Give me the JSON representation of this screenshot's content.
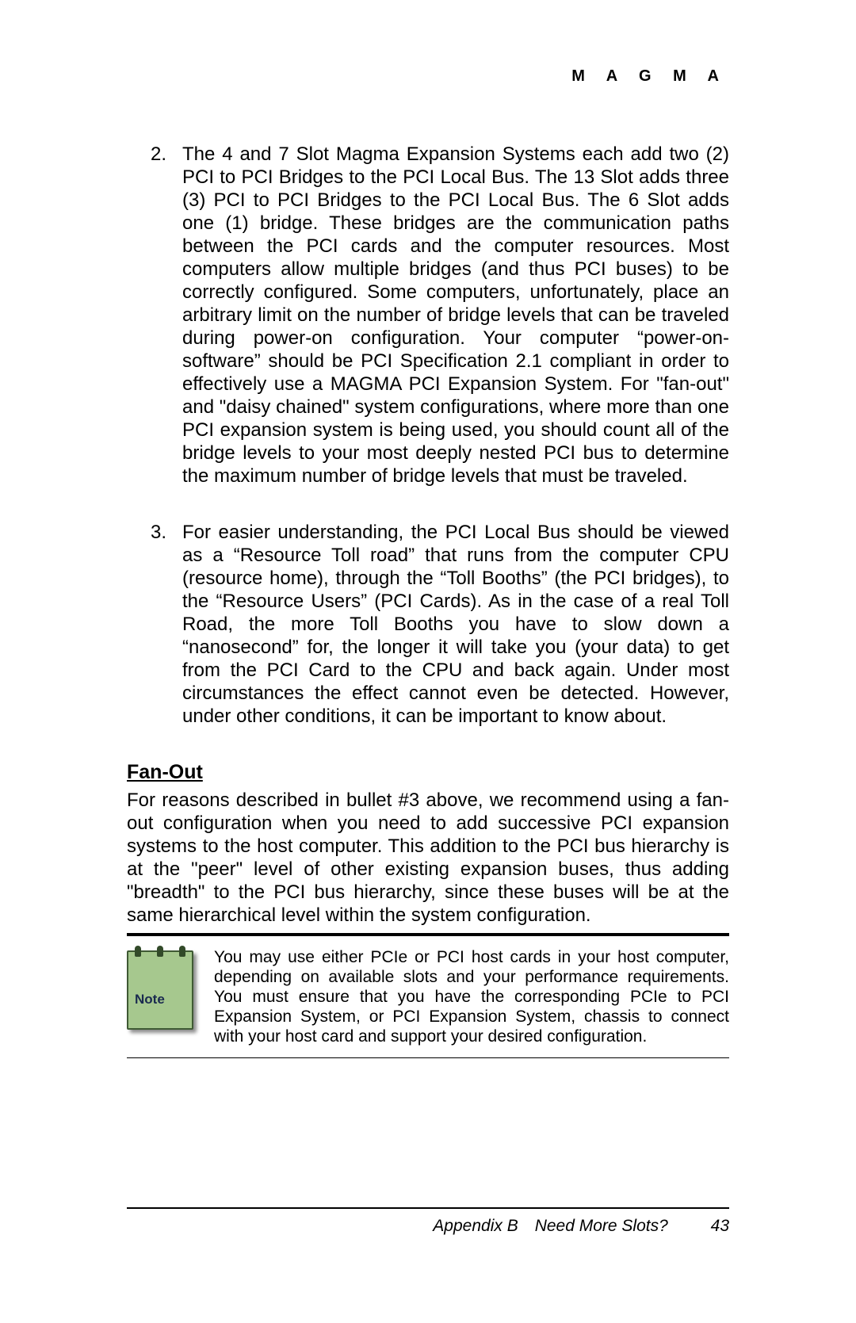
{
  "header": {
    "brand": "M A G M A"
  },
  "list": {
    "item2": {
      "num": "2.",
      "text": "The 4 and 7 Slot Magma Expansion Systems each add two (2) PCI to PCI Bridges to the PCI Local Bus. The 13 Slot adds three (3) PCI to PCI Bridges to the PCI Local Bus. The 6 Slot adds one (1) bridge. These bridges are the communication paths between the PCI cards and the computer resources. Most computers allow multiple bridges (and thus PCI buses) to be correctly configured. Some computers, unfortunately, place an arbitrary limit on the number of bridge levels that can be traveled during power-on configuration. Your computer “power-on-software” should be PCI Specification 2.1 compliant in order to effectively use a MAGMA PCI Expansion System. For \"fan-out\" and \"daisy chained\" system configurations, where more than one PCI expansion system is being used, you should count all of the bridge levels to your most deeply nested PCI bus to determine the maximum number of bridge levels that must be traveled."
    },
    "item3": {
      "num": "3.",
      "text": "For easier understanding, the PCI Local Bus should be viewed as a “Resource Toll road” that runs from the computer CPU (resource home), through the “Toll Booths” (the PCI bridges), to the “Resource Users” (PCI Cards). As in the case of a real Toll Road, the more Toll Booths you have to slow down a “nanosecond” for, the longer it will take you (your data) to get from the PCI Card to the CPU and back again. Under most circumstances the effect cannot even be detected. However, under other conditions, it can be important to know about."
    }
  },
  "section": {
    "heading": "Fan-Out",
    "paragraph": "For reasons described in bullet #3 above, we recommend using a fan-out configuration when you need to add successive PCI expansion systems to the host computer. This addition to the PCI bus hierarchy is at the \"peer\" level of other existing expansion buses, thus adding \"breadth\" to the PCI bus hierarchy, since these buses will be at the same hierarchical level within the system configuration."
  },
  "note": {
    "icon_label": "Note",
    "text": "You may use either PCIe or PCI host cards in your host computer, depending on available slots and your performance requirements. You must ensure that you have the corresponding PCIe to PCI Expansion System, or PCI Expansion System, chassis to connect with your host card and support your desired configuration."
  },
  "footer": {
    "appendix": "Appendix B Need More Slots?",
    "page_number": "43"
  },
  "colors": {
    "note_bg": "#a6c88e",
    "note_border": "#3f5a34",
    "note_label": "#1a2a4f",
    "text": "#000000",
    "background": "#ffffff"
  }
}
